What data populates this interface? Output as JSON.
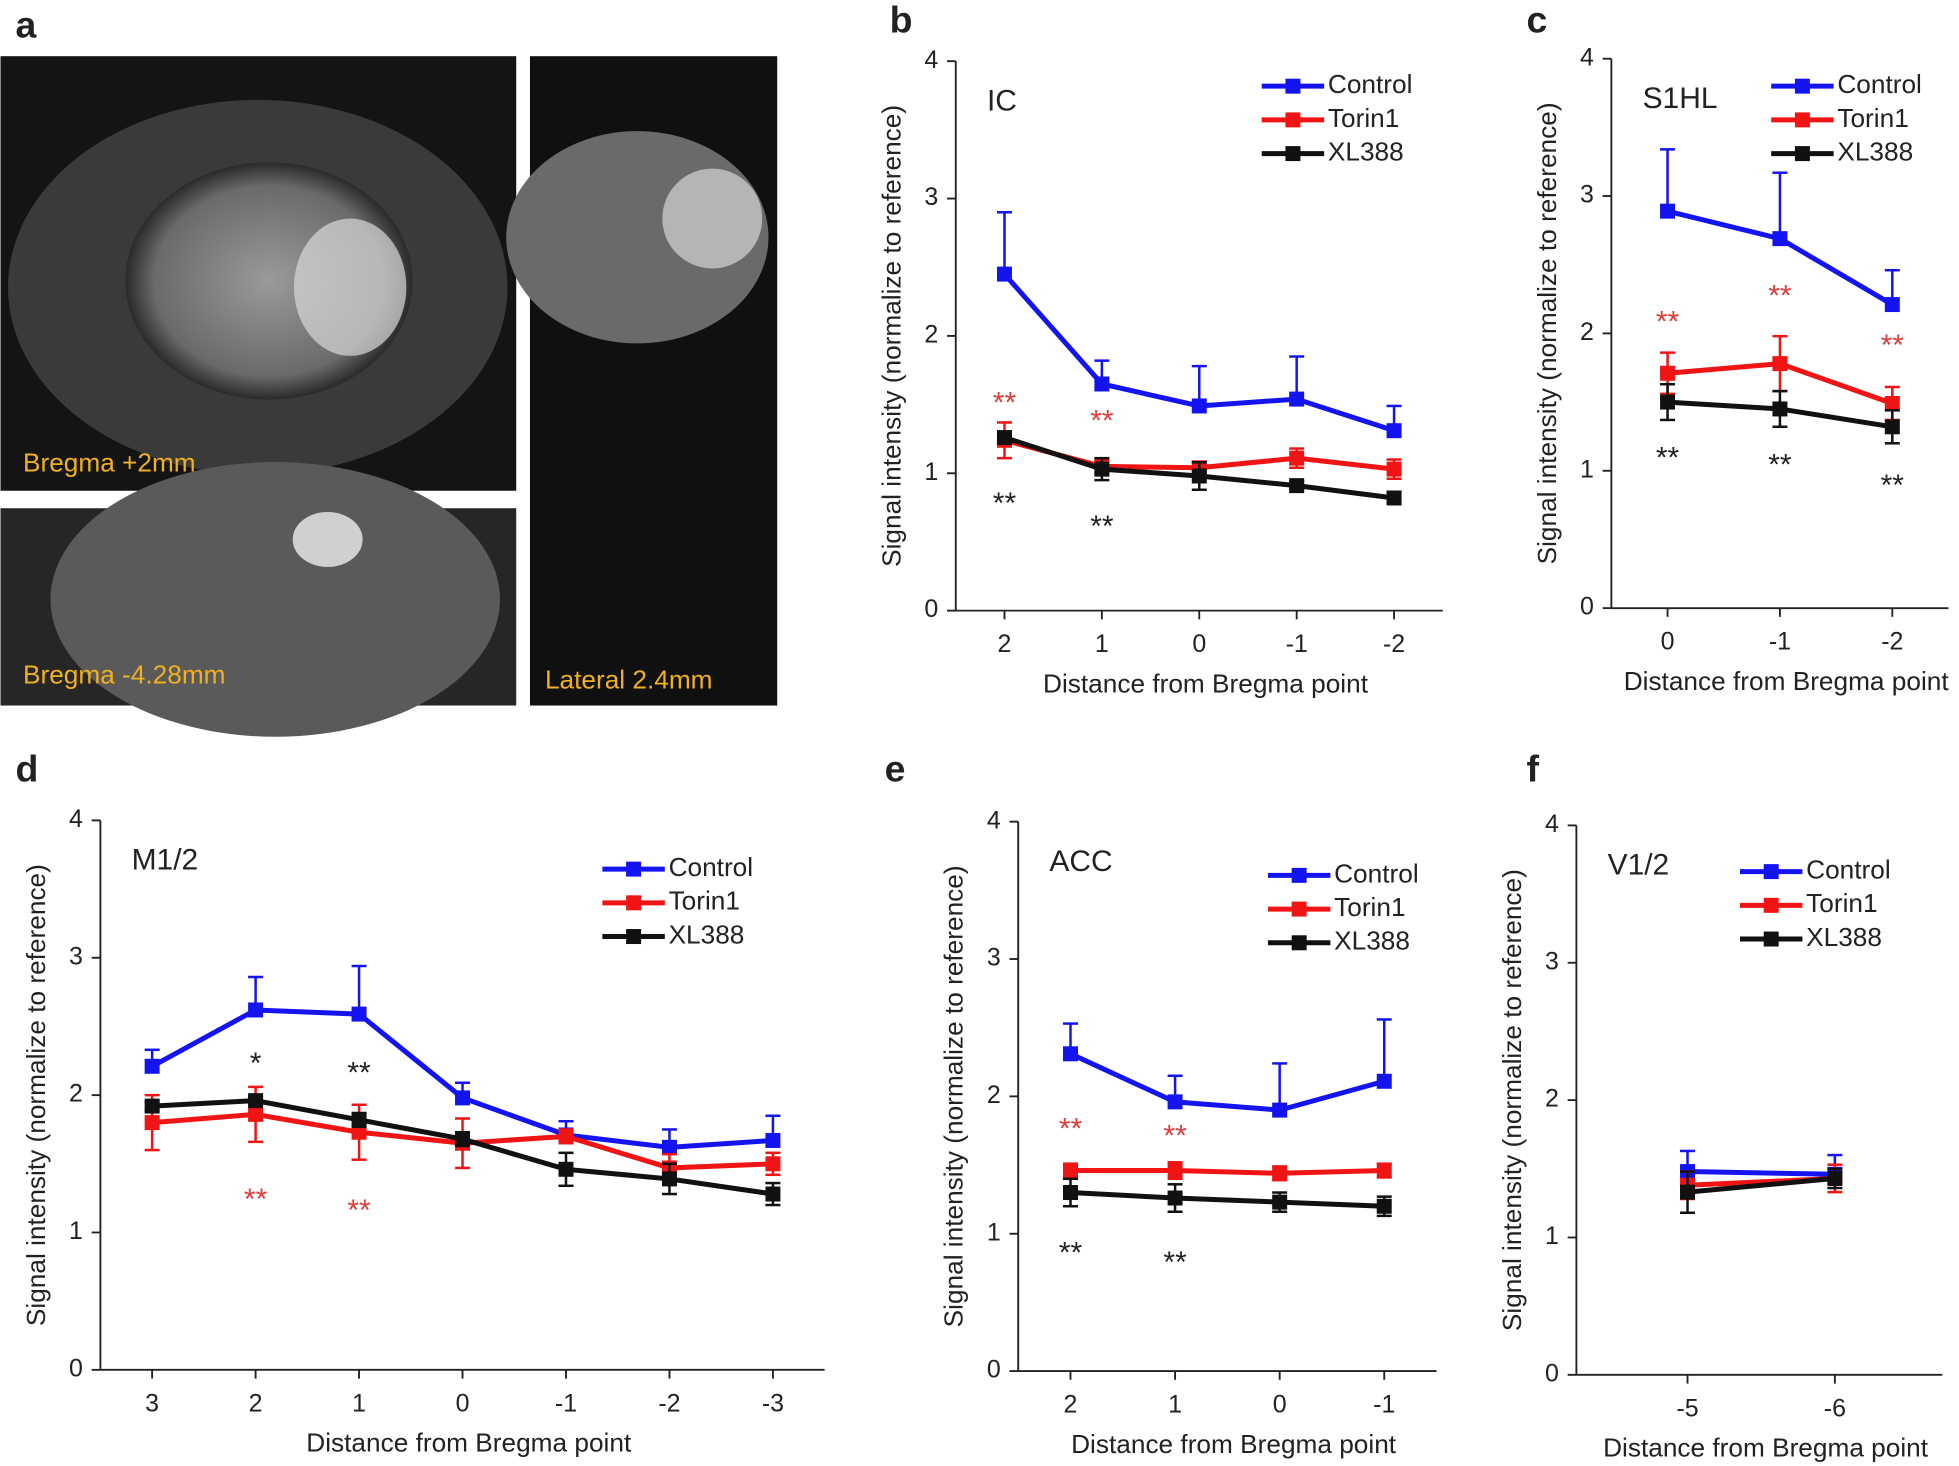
{
  "image_panel": {
    "panel_label": "a",
    "labels": [
      "Bregma +2mm",
      "Bregma -4.28mm",
      "Lateral 2.4mm"
    ]
  },
  "chart_data": [
    {
      "type": "line",
      "panel_label": "b",
      "subtitle": "IC",
      "x_label": "Distance from Bregma point",
      "y_label": "Signal intensity (normalize to reference)",
      "categories": [
        "2",
        "1",
        "0",
        "-1",
        "-2"
      ],
      "ylim": [
        0,
        4
      ],
      "yticks": [
        0,
        1,
        2,
        3,
        4
      ],
      "legend": "upper right",
      "series": [
        {
          "name": "Control",
          "color": "#1414f0",
          "error_direction": "up",
          "values": [
            2.45,
            1.65,
            1.49,
            1.54,
            1.31
          ],
          "errors": [
            0.45,
            0.17,
            0.29,
            0.31,
            0.18
          ]
        },
        {
          "name": "Torin1",
          "color": "#f01414",
          "error_direction": "both",
          "values": [
            1.24,
            1.05,
            1.04,
            1.11,
            1.03
          ],
          "errors": [
            0.13,
            0.05,
            0.04,
            0.07,
            0.07
          ]
        },
        {
          "name": "XL388",
          "color": "#111111",
          "error_direction": "both",
          "values": [
            1.26,
            1.03,
            0.98,
            0.91,
            0.82
          ],
          "errors": [
            0.03,
            0.08,
            0.1,
            0.03,
            0.04
          ]
        }
      ],
      "annotations": [
        {
          "text": "**",
          "x": "2",
          "y": 1.5,
          "color": "#e03c3c"
        },
        {
          "text": "**",
          "x": "1",
          "y": 1.37,
          "color": "#e03c3c"
        },
        {
          "text": "**",
          "x": "2",
          "y": 0.77,
          "color": "#222222"
        },
        {
          "text": "**",
          "x": "1",
          "y": 0.6,
          "color": "#222222"
        }
      ]
    },
    {
      "type": "line",
      "panel_label": "c",
      "subtitle": "S1HL",
      "x_label": "Distance from Bregma point",
      "y_label": "Signal intensity (normalize to reference)",
      "categories": [
        "0",
        "-1",
        "-2"
      ],
      "ylim": [
        0,
        4
      ],
      "yticks": [
        0,
        1,
        2,
        3,
        4
      ],
      "legend": "upper right",
      "series": [
        {
          "name": "Control",
          "color": "#1414f0",
          "error_direction": "up",
          "values": [
            2.89,
            2.69,
            2.21
          ],
          "errors": [
            0.45,
            0.48,
            0.25
          ]
        },
        {
          "name": "Torin1",
          "color": "#f01414",
          "error_direction": "both",
          "values": [
            1.71,
            1.78,
            1.49
          ],
          "errors": [
            0.15,
            0.2,
            0.12
          ]
        },
        {
          "name": "XL388",
          "color": "#111111",
          "error_direction": "both",
          "values": [
            1.5,
            1.45,
            1.32
          ],
          "errors": [
            0.13,
            0.13,
            0.12
          ]
        }
      ],
      "annotations": [
        {
          "text": "**",
          "x": "0",
          "y": 2.07,
          "color": "#e03c3c"
        },
        {
          "text": "**",
          "x": "-1",
          "y": 2.26,
          "color": "#e03c3c"
        },
        {
          "text": "**",
          "x": "-2",
          "y": 1.9,
          "color": "#e03c3c"
        },
        {
          "text": "**",
          "x": "0",
          "y": 1.08,
          "color": "#222222"
        },
        {
          "text": "**",
          "x": "-1",
          "y": 1.03,
          "color": "#222222"
        },
        {
          "text": "**",
          "x": "-2",
          "y": 0.88,
          "color": "#222222"
        }
      ]
    },
    {
      "type": "line",
      "panel_label": "d",
      "subtitle": "M1/2",
      "x_label": "Distance from Bregma point",
      "y_label": "Signal intensity (normalize to reference)",
      "categories": [
        "3",
        "2",
        "1",
        "0",
        "-1",
        "-2",
        "-3"
      ],
      "ylim": [
        0,
        4
      ],
      "yticks": [
        0,
        1,
        2,
        3,
        4
      ],
      "legend": "upper right",
      "series": [
        {
          "name": "Control",
          "color": "#1414f0",
          "error_direction": "up",
          "values": [
            2.21,
            2.62,
            2.59,
            1.98,
            1.71,
            1.62,
            1.67
          ],
          "errors": [
            0.12,
            0.24,
            0.35,
            0.11,
            0.1,
            0.13,
            0.18
          ]
        },
        {
          "name": "Torin1",
          "color": "#f01414",
          "error_direction": "both",
          "values": [
            1.8,
            1.86,
            1.73,
            1.65,
            1.7,
            1.47,
            1.5
          ],
          "errors": [
            0.2,
            0.2,
            0.2,
            0.18,
            0.05,
            0.1,
            0.08
          ]
        },
        {
          "name": "XL388",
          "color": "#111111",
          "error_direction": "both",
          "values": [
            1.92,
            1.96,
            1.82,
            1.68,
            1.46,
            1.39,
            1.28
          ],
          "errors": [
            0.03,
            0.03,
            0.05,
            0.05,
            0.12,
            0.11,
            0.08
          ]
        }
      ],
      "annotations": [
        {
          "text": "*",
          "x": "2",
          "y": 2.22,
          "color": "#222222"
        },
        {
          "text": "**",
          "x": "1",
          "y": 2.15,
          "color": "#222222"
        },
        {
          "text": "**",
          "x": "2",
          "y": 1.23,
          "color": "#e03c3c"
        },
        {
          "text": "**",
          "x": "1",
          "y": 1.15,
          "color": "#e03c3c"
        }
      ]
    },
    {
      "type": "line",
      "panel_label": "e",
      "subtitle": "ACC",
      "x_label": "Distance from Bregma point",
      "y_label": "Signal intensity (normalize to reference)",
      "categories": [
        "2",
        "1",
        "0",
        "-1"
      ],
      "ylim": [
        0,
        4
      ],
      "yticks": [
        0,
        1,
        2,
        3,
        4
      ],
      "legend": "upper right",
      "series": [
        {
          "name": "Control",
          "color": "#1414f0",
          "error_direction": "up",
          "values": [
            2.31,
            1.96,
            1.9,
            2.11
          ],
          "errors": [
            0.22,
            0.19,
            0.34,
            0.45
          ]
        },
        {
          "name": "Torin1",
          "color": "#f01414",
          "error_direction": "both",
          "values": [
            1.46,
            1.46,
            1.44,
            1.46
          ],
          "errors": [
            0.05,
            0.06,
            0.05,
            0.05
          ]
        },
        {
          "name": "XL388",
          "color": "#111111",
          "error_direction": "both",
          "values": [
            1.3,
            1.26,
            1.23,
            1.2
          ],
          "errors": [
            0.1,
            0.1,
            0.07,
            0.07
          ]
        }
      ],
      "annotations": [
        {
          "text": "**",
          "x": "2",
          "y": 1.75,
          "color": "#e03c3c"
        },
        {
          "text": "**",
          "x": "1",
          "y": 1.7,
          "color": "#e03c3c"
        },
        {
          "text": "**",
          "x": "2",
          "y": 0.85,
          "color": "#222222"
        },
        {
          "text": "**",
          "x": "1",
          "y": 0.78,
          "color": "#222222"
        }
      ]
    },
    {
      "type": "line",
      "panel_label": "f",
      "subtitle": "V1/2",
      "x_label": "Distance from Bregma point",
      "y_label": "Signal intensity (normalize to reference)",
      "categories": [
        "-5",
        "-6"
      ],
      "ylim": [
        0,
        4
      ],
      "yticks": [
        0,
        1,
        2,
        3,
        4
      ],
      "legend": "upper right",
      "series": [
        {
          "name": "Control",
          "color": "#1414f0",
          "error_direction": "up",
          "values": [
            1.48,
            1.46
          ],
          "errors": [
            0.15,
            0.14
          ]
        },
        {
          "name": "Torin1",
          "color": "#f01414",
          "error_direction": "both",
          "values": [
            1.38,
            1.43
          ],
          "errors": [
            0.1,
            0.1
          ]
        },
        {
          "name": "XL388",
          "color": "#111111",
          "error_direction": "both",
          "values": [
            1.33,
            1.43
          ],
          "errors": [
            0.15,
            0.07
          ]
        }
      ],
      "annotations": []
    }
  ]
}
